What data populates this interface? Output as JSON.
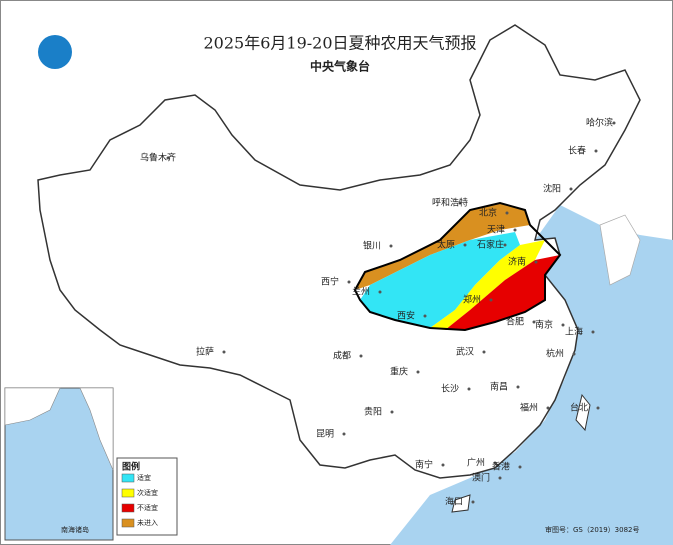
{
  "title": "2025年6月19-20日夏种农用天气预报",
  "subtitle": "中央气象台",
  "cities": [
    "乌鲁木齐",
    "哈尔滨",
    "长春",
    "沈阳",
    "呼和浩特",
    "北京",
    "天津",
    "银川",
    "太原",
    "石家庄",
    "西宁",
    "兰州",
    "济南",
    "西安",
    "郑州",
    "合肥",
    "南京",
    "上海",
    "拉萨",
    "成都",
    "武汉",
    "重庆",
    "杭州",
    "长沙",
    "南昌",
    "贵阳",
    "福州",
    "台北",
    "昆明",
    "南宁",
    "广州",
    "香港",
    "澳门",
    "海口"
  ],
  "legend": {
    "title": "图例",
    "items": [
      "适宜",
      "次适宜",
      "不适宜",
      "未进入"
    ]
  },
  "inset_label": "南海诸岛",
  "map_number": "审图号：GS（2019）3082号"
}
